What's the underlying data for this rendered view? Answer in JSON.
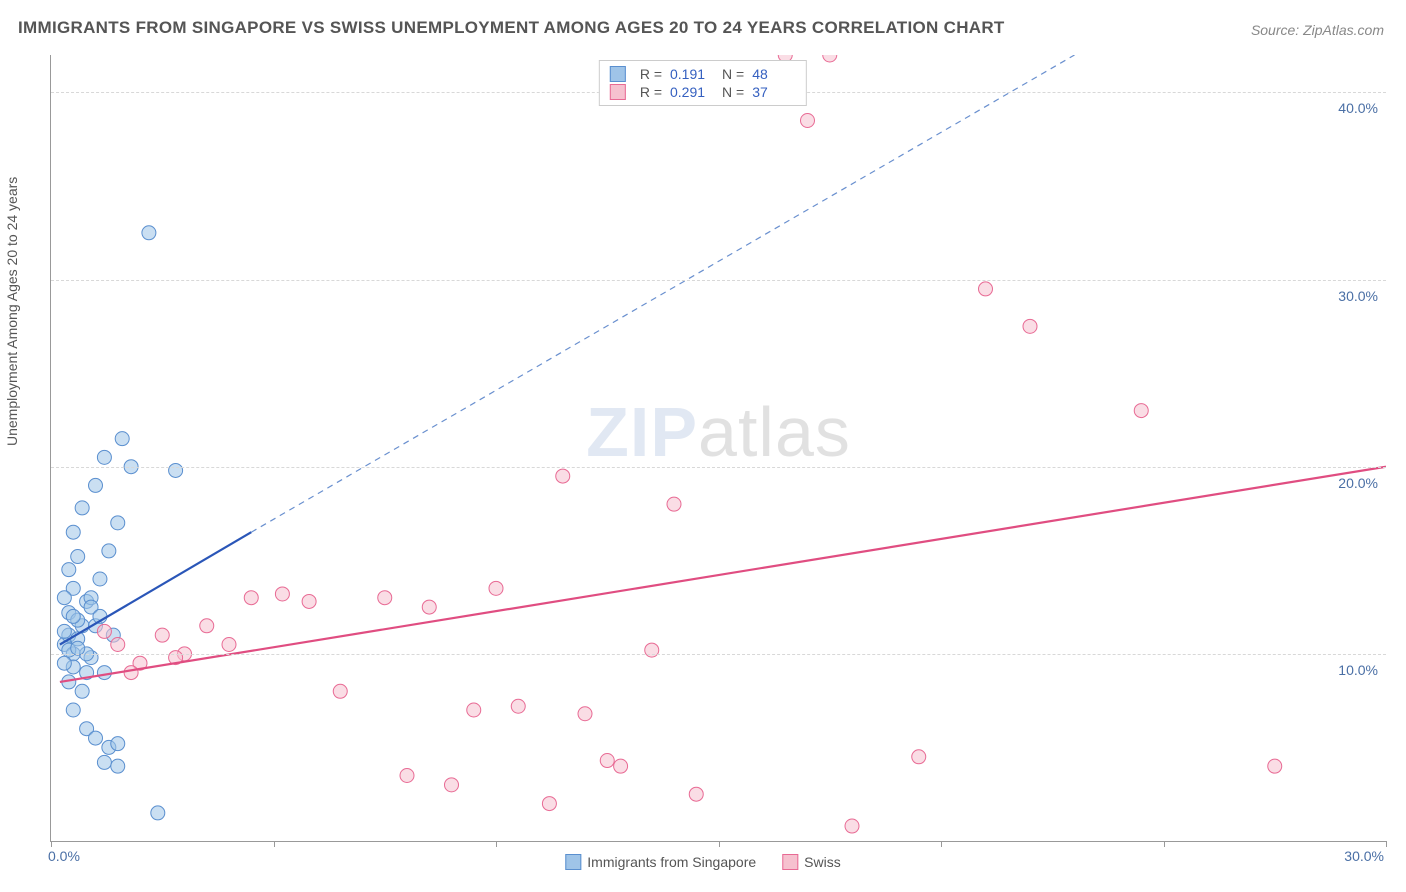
{
  "title": "IMMIGRANTS FROM SINGAPORE VS SWISS UNEMPLOYMENT AMONG AGES 20 TO 24 YEARS CORRELATION CHART",
  "source": "Source: ZipAtlas.com",
  "watermark_a": "ZIP",
  "watermark_b": "atlas",
  "y_axis_title": "Unemployment Among Ages 20 to 24 years",
  "x_min_label": "0.0%",
  "x_max_label": "30.0%",
  "legend_series": [
    {
      "label": "Immigrants from Singapore",
      "fill": "#9fc4e8",
      "stroke": "#5a8fcf"
    },
    {
      "label": "Swiss",
      "fill": "#f6c1cf",
      "stroke": "#e86a94"
    }
  ],
  "legend_stats": [
    {
      "swatch_fill": "#9fc4e8",
      "swatch_stroke": "#5a8fcf",
      "r_label": "R =",
      "r": "0.191",
      "n_label": "N =",
      "n": "48"
    },
    {
      "swatch_fill": "#f6c1cf",
      "swatch_stroke": "#e86a94",
      "r_label": "R =",
      "r": "0.291",
      "n_label": "N =",
      "n": "37"
    }
  ],
  "chart": {
    "type": "scatter",
    "xlim": [
      0,
      30
    ],
    "ylim": [
      0,
      42
    ],
    "y_gridlines": [
      10,
      20,
      30,
      40
    ],
    "y_tick_labels": [
      "10.0%",
      "20.0%",
      "30.0%",
      "40.0%"
    ],
    "x_ticks": [
      0,
      5,
      10,
      15,
      20,
      25,
      30
    ],
    "background_color": "#ffffff",
    "grid_color": "#d8d8d8",
    "marker_radius": 7,
    "marker_opacity": 0.55,
    "series": [
      {
        "name": "singapore",
        "fill": "#9fc4e8",
        "stroke": "#5a8fcf",
        "trend_solid": {
          "x1": 0.2,
          "y1": 10.5,
          "x2": 4.5,
          "y2": 16.5,
          "color": "#2a56b8",
          "width": 2.2
        },
        "trend_dash": {
          "x1": 4.5,
          "y1": 16.5,
          "x2": 23.0,
          "y2": 42.0,
          "color": "#6a90cf",
          "width": 1.2
        },
        "points": [
          [
            0.3,
            10.5
          ],
          [
            0.4,
            11.0
          ],
          [
            0.3,
            11.2
          ],
          [
            0.5,
            10.0
          ],
          [
            0.6,
            10.8
          ],
          [
            0.4,
            12.2
          ],
          [
            0.7,
            11.5
          ],
          [
            0.5,
            13.5
          ],
          [
            0.8,
            12.8
          ],
          [
            0.4,
            14.5
          ],
          [
            0.9,
            13.0
          ],
          [
            0.6,
            15.2
          ],
          [
            1.1,
            14.0
          ],
          [
            0.5,
            16.5
          ],
          [
            1.3,
            15.5
          ],
          [
            0.7,
            17.8
          ],
          [
            1.5,
            17.0
          ],
          [
            1.0,
            19.0
          ],
          [
            1.2,
            20.5
          ],
          [
            1.8,
            20.0
          ],
          [
            1.6,
            21.5
          ],
          [
            2.8,
            19.8
          ],
          [
            2.2,
            32.5
          ],
          [
            0.8,
            9.0
          ],
          [
            0.5,
            9.3
          ],
          [
            0.9,
            9.8
          ],
          [
            1.2,
            9.0
          ],
          [
            0.5,
            7.0
          ],
          [
            0.8,
            6.0
          ],
          [
            1.0,
            5.5
          ],
          [
            1.3,
            5.0
          ],
          [
            1.5,
            5.2
          ],
          [
            1.2,
            4.2
          ],
          [
            1.5,
            4.0
          ],
          [
            1.0,
            11.5
          ],
          [
            2.4,
            1.5
          ],
          [
            0.3,
            9.5
          ],
          [
            0.4,
            10.2
          ],
          [
            0.6,
            11.8
          ],
          [
            0.4,
            8.5
          ],
          [
            0.7,
            8.0
          ],
          [
            0.9,
            12.5
          ],
          [
            0.5,
            12.0
          ],
          [
            0.8,
            10.0
          ],
          [
            0.3,
            13.0
          ],
          [
            0.6,
            10.3
          ],
          [
            1.4,
            11.0
          ],
          [
            1.1,
            12.0
          ]
        ]
      },
      {
        "name": "swiss",
        "fill": "#f6c1cf",
        "stroke": "#e86a94",
        "trend_solid": {
          "x1": 0.2,
          "y1": 8.5,
          "x2": 30.0,
          "y2": 20.0,
          "color": "#e04d81",
          "width": 2.2
        },
        "points": [
          [
            1.5,
            10.5
          ],
          [
            2.0,
            9.5
          ],
          [
            2.5,
            11.0
          ],
          [
            3.0,
            10.0
          ],
          [
            1.8,
            9.0
          ],
          [
            2.8,
            9.8
          ],
          [
            3.5,
            11.5
          ],
          [
            4.5,
            13.0
          ],
          [
            5.2,
            13.2
          ],
          [
            5.8,
            12.8
          ],
          [
            6.5,
            8.0
          ],
          [
            7.5,
            13.0
          ],
          [
            8.5,
            12.5
          ],
          [
            8.0,
            3.5
          ],
          [
            9.5,
            7.0
          ],
          [
            10.0,
            13.5
          ],
          [
            9.0,
            3.0
          ],
          [
            10.5,
            7.2
          ],
          [
            11.2,
            2.0
          ],
          [
            11.5,
            19.5
          ],
          [
            12.0,
            6.8
          ],
          [
            12.5,
            4.3
          ],
          [
            12.8,
            4.0
          ],
          [
            13.5,
            10.2
          ],
          [
            14.0,
            18.0
          ],
          [
            14.5,
            2.5
          ],
          [
            16.5,
            42.0
          ],
          [
            17.0,
            38.5
          ],
          [
            17.5,
            42.0
          ],
          [
            18.0,
            0.8
          ],
          [
            19.5,
            4.5
          ],
          [
            21.0,
            29.5
          ],
          [
            22.0,
            27.5
          ],
          [
            24.5,
            23.0
          ],
          [
            27.5,
            4.0
          ],
          [
            1.2,
            11.2
          ],
          [
            4.0,
            10.5
          ]
        ]
      }
    ]
  }
}
